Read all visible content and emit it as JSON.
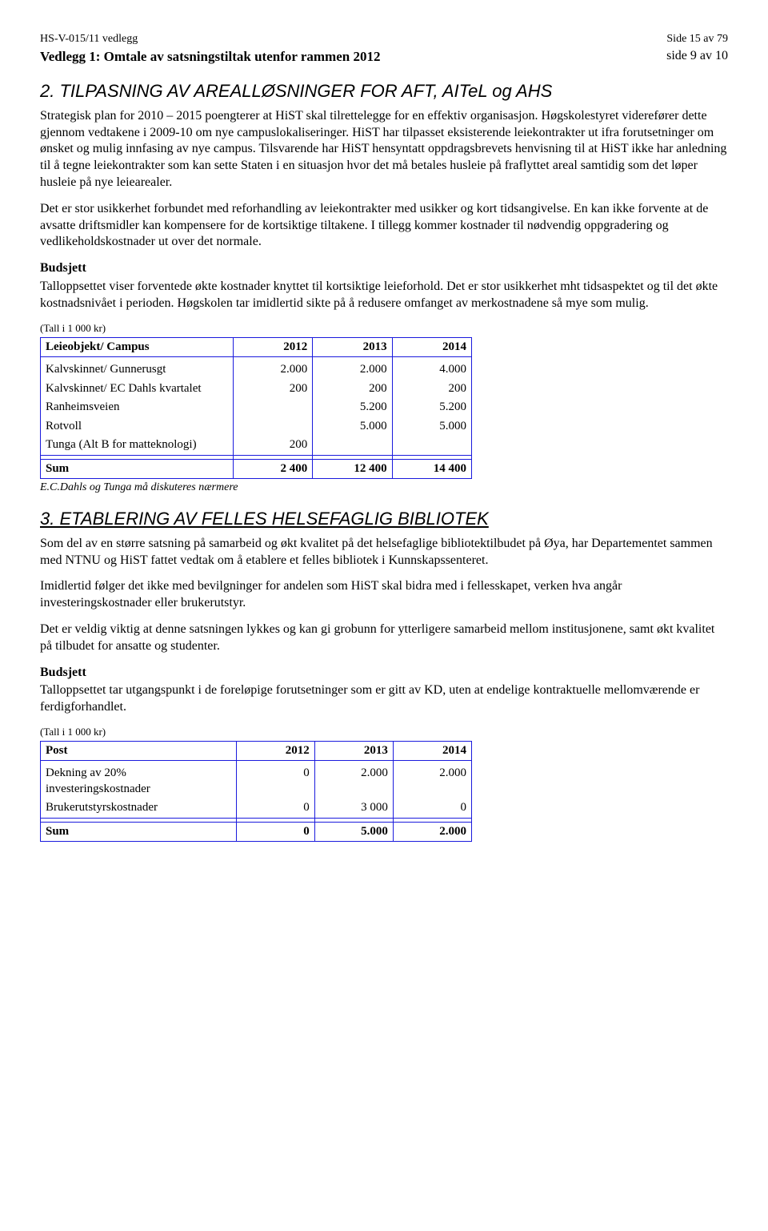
{
  "header": {
    "doc_id": "HS-V-015/11 vedlegg",
    "page_info": "Side 15 av 79",
    "attachment_title": "Vedlegg 1: Omtale av satsningstiltak utenfor rammen 2012",
    "attachment_page": "side 9 av 10"
  },
  "section2": {
    "title": "2. TILPASNING AV AREALLØSNINGER FOR AFT, AITeL og AHS",
    "p1": "Strategisk plan for 2010 – 2015 poengterer at HiST skal tilrettelegge for en effektiv organisasjon. Høgskolestyret viderefører dette gjennom vedtakene i 2009-10 om nye campuslokaliseringer. HiST har tilpasset eksisterende leiekontrakter ut ifra forutsetninger om ønsket og mulig innfasing av nye campus. Tilsvarende har HiST hensyntatt oppdragsbrevets henvisning til at HiST ikke har anledning til å tegne leiekontrakter som kan sette Staten i en situasjon hvor det må betales husleie på fraflyttet areal samtidig som det løper husleie på nye leiearealer.",
    "p2": "Det er stor usikkerhet forbundet med reforhandling av leiekontrakter med usikker og kort tidsangivelse. En kan ikke forvente at de avsatte driftsmidler kan kompensere for de kortsiktige tiltakene. I tillegg kommer kostnader til nødvendig oppgradering og vedlikeholdskostnader ut over det normale.",
    "budget_label": "Budsjett",
    "budget_text": "Talloppsettet viser forventede økte kostnader knyttet til kortsiktige leieforhold. Det er stor usikkerhet mht tidsaspektet og til det økte kostnadsnivået i perioden. Høgskolen tar imidlertid sikte på å redusere omfanget av merkostnadene så mye som mulig.",
    "tall_note": "(Tall i 1 000 kr)",
    "table": {
      "col0": "Leieobjekt/ Campus",
      "col1": "2012",
      "col2": "2013",
      "col3": "2014",
      "rows": [
        {
          "label": "Kalvskinnet/ Gunnerusgt",
          "v1": "2.000",
          "v2": "2.000",
          "v3": "4.000"
        },
        {
          "label": "Kalvskinnet/ EC Dahls kvartalet",
          "v1": "200",
          "v2": "200",
          "v3": "200"
        },
        {
          "label": "Ranheimsveien",
          "v1": "",
          "v2": "5.200",
          "v3": "5.200"
        },
        {
          "label": "Rotvoll",
          "v1": "",
          "v2": "5.000",
          "v3": "5.000"
        },
        {
          "label": "Tunga (Alt B for matteknologi)",
          "v1": "200",
          "v2": "",
          "v3": ""
        }
      ],
      "sum_label": "Sum",
      "sum1": "2 400",
      "sum2": "12 400",
      "sum3": "14 400"
    },
    "table_footnote": "E.C.Dahls og Tunga må diskuteres nærmere"
  },
  "section3": {
    "title": "3. ETABLERING AV FELLES HELSEFAGLIG BIBLIOTEK",
    "p1": "Som del av en større satsning på samarbeid og økt kvalitet på det helsefaglige bibliotektilbudet på Øya, har Departementet sammen med NTNU og HiST fattet vedtak om å etablere et felles bibliotek i Kunnskapssenteret.",
    "p2": "Imidlertid følger det ikke med bevilgninger for andelen som HiST skal bidra med i fellesskapet, verken hva angår investeringskostnader eller brukerutstyr.",
    "p3": "Det er veldig viktig at denne satsningen lykkes og kan gi grobunn for ytterligere samarbeid mellom institusjonene, samt økt kvalitet på tilbudet for ansatte og studenter.",
    "budget_label": "Budsjett",
    "budget_text": "Talloppsettet tar utgangspunkt i de foreløpige forutsetninger som er gitt av KD, uten at endelige kontraktuelle mellomværende er ferdigforhandlet.",
    "tall_note": " (Tall i 1 000 kr)",
    "table": {
      "col0": "Post",
      "col1": "2012",
      "col2": "2013",
      "col3": "2014",
      "rows": [
        {
          "label": "Dekning av 20% investeringskostnader",
          "v1": "0",
          "v2": "2.000",
          "v3": "2.000"
        },
        {
          "label": "Brukerutstyrskostnader",
          "v1": "0",
          "v2": "3 000",
          "v3": "0"
        }
      ],
      "sum_label": "Sum",
      "sum1": "0",
      "sum2": "5.000",
      "sum3": "2.000"
    }
  }
}
